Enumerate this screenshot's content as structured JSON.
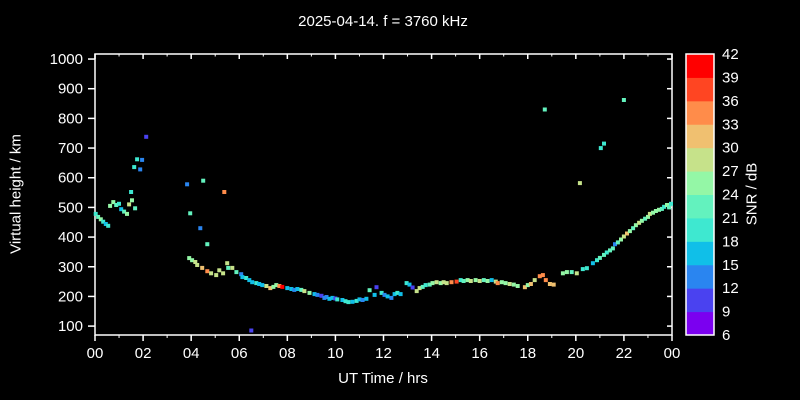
{
  "window": {
    "background": "#000000",
    "text_color": "#ffffff"
  },
  "chart_data": {
    "type": "scatter",
    "title": "2025-04-14. f = 3760 kHz",
    "xlabel": "UT Time / hrs",
    "ylabel": "Virtual height / km",
    "xlim": [
      0,
      24
    ],
    "ylim": [
      70,
      1017
    ],
    "grid": false,
    "x_ticks": {
      "values": [
        0,
        2,
        4,
        6,
        8,
        10,
        12,
        14,
        16,
        18,
        20,
        22,
        24
      ],
      "labels": [
        "00",
        "02",
        "04",
        "06",
        "08",
        "10",
        "12",
        "14",
        "16",
        "18",
        "20",
        "22",
        "00"
      ],
      "minor_every_hr": 1
    },
    "y_ticks": {
      "values": [
        100,
        200,
        300,
        400,
        500,
        600,
        700,
        800,
        900,
        1000
      ],
      "labels": [
        "100",
        "200",
        "300",
        "400",
        "500",
        "600",
        "700",
        "800",
        "900",
        "1000"
      ]
    },
    "colorbar": {
      "label": "SNR / dB",
      "vmin": 6,
      "vmax": 42,
      "tick_labels": [
        "6",
        "9",
        "12",
        "15",
        "18",
        "21",
        "24",
        "27",
        "30",
        "33",
        "36",
        "39",
        "42"
      ],
      "bin_colors": [
        "#7B00F0",
        "#4A42F0",
        "#2A85F0",
        "#10BFE8",
        "#3EE8D0",
        "#63F2BE",
        "#94F7A6",
        "#C6E28A",
        "#F0C070",
        "#FF8C4A",
        "#FF4522",
        "#FF0000"
      ]
    },
    "point_format": "[ut_hour, virtual_height_km, snr_db]",
    "points": [
      [
        0.03,
        478,
        19
      ],
      [
        0.13,
        468,
        22
      ],
      [
        0.24,
        460,
        25
      ],
      [
        0.34,
        452,
        19
      ],
      [
        0.45,
        444,
        16
      ],
      [
        0.55,
        438,
        19
      ],
      [
        0.63,
        505,
        25
      ],
      [
        0.76,
        518,
        25
      ],
      [
        0.88,
        508,
        22
      ],
      [
        1.0,
        512,
        19
      ],
      [
        1.09,
        494,
        16
      ],
      [
        1.21,
        486,
        22
      ],
      [
        1.33,
        478,
        25
      ],
      [
        1.42,
        510,
        28
      ],
      [
        1.54,
        524,
        25
      ],
      [
        1.67,
        497,
        22
      ],
      [
        1.5,
        552,
        19
      ],
      [
        1.63,
        636,
        19
      ],
      [
        1.75,
        662,
        19
      ],
      [
        1.88,
        628,
        13
      ],
      [
        1.96,
        660,
        13
      ],
      [
        2.13,
        738,
        10
      ],
      [
        3.83,
        578,
        13
      ],
      [
        3.96,
        480,
        22
      ],
      [
        4.38,
        430,
        13
      ],
      [
        4.5,
        590,
        22
      ],
      [
        4.67,
        376,
        22
      ],
      [
        5.38,
        552,
        34
      ],
      [
        3.92,
        329,
        25
      ],
      [
        4.04,
        322,
        25
      ],
      [
        4.17,
        316,
        28
      ],
      [
        4.25,
        306,
        28
      ],
      [
        4.46,
        296,
        31
      ],
      [
        4.67,
        285,
        34
      ],
      [
        4.83,
        278,
        28
      ],
      [
        5.04,
        272,
        28
      ],
      [
        5.17,
        288,
        28
      ],
      [
        5.33,
        278,
        28
      ],
      [
        5.5,
        312,
        28
      ],
      [
        5.54,
        296,
        22
      ],
      [
        5.71,
        296,
        28
      ],
      [
        5.88,
        282,
        22
      ],
      [
        6.08,
        275,
        13
      ],
      [
        6.13,
        265,
        16
      ],
      [
        6.29,
        262,
        19
      ],
      [
        6.42,
        255,
        16
      ],
      [
        6.54,
        248,
        16
      ],
      [
        6.71,
        245,
        19
      ],
      [
        6.83,
        242,
        16
      ],
      [
        6.96,
        238,
        16
      ],
      [
        7.13,
        235,
        28
      ],
      [
        7.29,
        228,
        31
      ],
      [
        7.42,
        232,
        25
      ],
      [
        7.54,
        238,
        25
      ],
      [
        7.67,
        235,
        34
      ],
      [
        7.79,
        232,
        40
      ],
      [
        8.0,
        228,
        16
      ],
      [
        8.17,
        225,
        16
      ],
      [
        8.29,
        222,
        13
      ],
      [
        8.42,
        225,
        16
      ],
      [
        8.58,
        222,
        22
      ],
      [
        8.71,
        218,
        28
      ],
      [
        8.92,
        212,
        25
      ],
      [
        9.13,
        208,
        16
      ],
      [
        9.25,
        205,
        13
      ],
      [
        9.42,
        202,
        10
      ],
      [
        9.54,
        195,
        13
      ],
      [
        9.63,
        198,
        13
      ],
      [
        9.75,
        192,
        16
      ],
      [
        9.88,
        195,
        16
      ],
      [
        10.0,
        193,
        10
      ],
      [
        10.08,
        190,
        19
      ],
      [
        10.29,
        188,
        16
      ],
      [
        10.42,
        184,
        19
      ],
      [
        10.54,
        181,
        19
      ],
      [
        10.71,
        182,
        16
      ],
      [
        10.88,
        185,
        19
      ],
      [
        11.0,
        190,
        16
      ],
      [
        11.13,
        188,
        13
      ],
      [
        11.29,
        192,
        16
      ],
      [
        11.42,
        221,
        22
      ],
      [
        11.63,
        205,
        16
      ],
      [
        11.71,
        231,
        10
      ],
      [
        11.92,
        212,
        19
      ],
      [
        12.04,
        205,
        13
      ],
      [
        12.17,
        200,
        16
      ],
      [
        12.33,
        195,
        13
      ],
      [
        12.46,
        208,
        16
      ],
      [
        12.58,
        212,
        19
      ],
      [
        12.71,
        208,
        16
      ],
      [
        12.96,
        245,
        19
      ],
      [
        13.08,
        240,
        16
      ],
      [
        13.21,
        230,
        10
      ],
      [
        13.38,
        218,
        28
      ],
      [
        13.5,
        228,
        28
      ],
      [
        13.63,
        232,
        22
      ],
      [
        13.75,
        238,
        19
      ],
      [
        13.92,
        240,
        22
      ],
      [
        14.04,
        245,
        25
      ],
      [
        14.21,
        248,
        28
      ],
      [
        14.38,
        245,
        25
      ],
      [
        14.5,
        248,
        28
      ],
      [
        14.63,
        245,
        28
      ],
      [
        14.83,
        248,
        34
      ],
      [
        15.04,
        250,
        37
      ],
      [
        15.21,
        255,
        19
      ],
      [
        15.33,
        252,
        22
      ],
      [
        15.5,
        255,
        25
      ],
      [
        15.63,
        252,
        28
      ],
      [
        15.83,
        255,
        25
      ],
      [
        16.0,
        252,
        28
      ],
      [
        16.17,
        255,
        22
      ],
      [
        16.33,
        252,
        25
      ],
      [
        16.5,
        255,
        16
      ],
      [
        16.67,
        250,
        28
      ],
      [
        16.75,
        245,
        34
      ],
      [
        16.92,
        248,
        25
      ],
      [
        17.08,
        245,
        25
      ],
      [
        17.25,
        242,
        28
      ],
      [
        17.42,
        240,
        25
      ],
      [
        17.58,
        235,
        25
      ],
      [
        17.88,
        231,
        31
      ],
      [
        18.0,
        238,
        25
      ],
      [
        18.13,
        242,
        31
      ],
      [
        18.29,
        255,
        28
      ],
      [
        18.5,
        268,
        34
      ],
      [
        18.63,
        272,
        34
      ],
      [
        18.75,
        255,
        34
      ],
      [
        18.92,
        242,
        31
      ],
      [
        19.08,
        240,
        31
      ],
      [
        19.46,
        278,
        25
      ],
      [
        19.63,
        282,
        25
      ],
      [
        19.83,
        282,
        22
      ],
      [
        20.04,
        278,
        28
      ],
      [
        20.29,
        292,
        19
      ],
      [
        20.46,
        295,
        19
      ],
      [
        20.71,
        312,
        16
      ],
      [
        20.88,
        322,
        19
      ],
      [
        21.0,
        330,
        22
      ],
      [
        21.17,
        340,
        22
      ],
      [
        21.29,
        348,
        19
      ],
      [
        21.42,
        355,
        22
      ],
      [
        21.54,
        362,
        22
      ],
      [
        21.63,
        376,
        13
      ],
      [
        21.75,
        382,
        22
      ],
      [
        21.88,
        392,
        25
      ],
      [
        22.0,
        402,
        28
      ],
      [
        22.13,
        412,
        31
      ],
      [
        22.25,
        420,
        25
      ],
      [
        22.38,
        430,
        22
      ],
      [
        22.5,
        440,
        25
      ],
      [
        22.63,
        448,
        28
      ],
      [
        22.75,
        455,
        25
      ],
      [
        22.88,
        462,
        22
      ],
      [
        23.0,
        468,
        25
      ],
      [
        23.08,
        478,
        28
      ],
      [
        23.21,
        482,
        25
      ],
      [
        23.33,
        488,
        25
      ],
      [
        23.46,
        492,
        25
      ],
      [
        23.58,
        495,
        22
      ],
      [
        23.67,
        502,
        19
      ],
      [
        23.79,
        508,
        25
      ],
      [
        23.88,
        500,
        22
      ],
      [
        23.96,
        512,
        19
      ],
      [
        18.71,
        830,
        22
      ],
      [
        22.0,
        862,
        22
      ],
      [
        21.04,
        700,
        19
      ],
      [
        21.17,
        715,
        19
      ],
      [
        20.17,
        582,
        28
      ],
      [
        6.5,
        85,
        10
      ]
    ]
  }
}
